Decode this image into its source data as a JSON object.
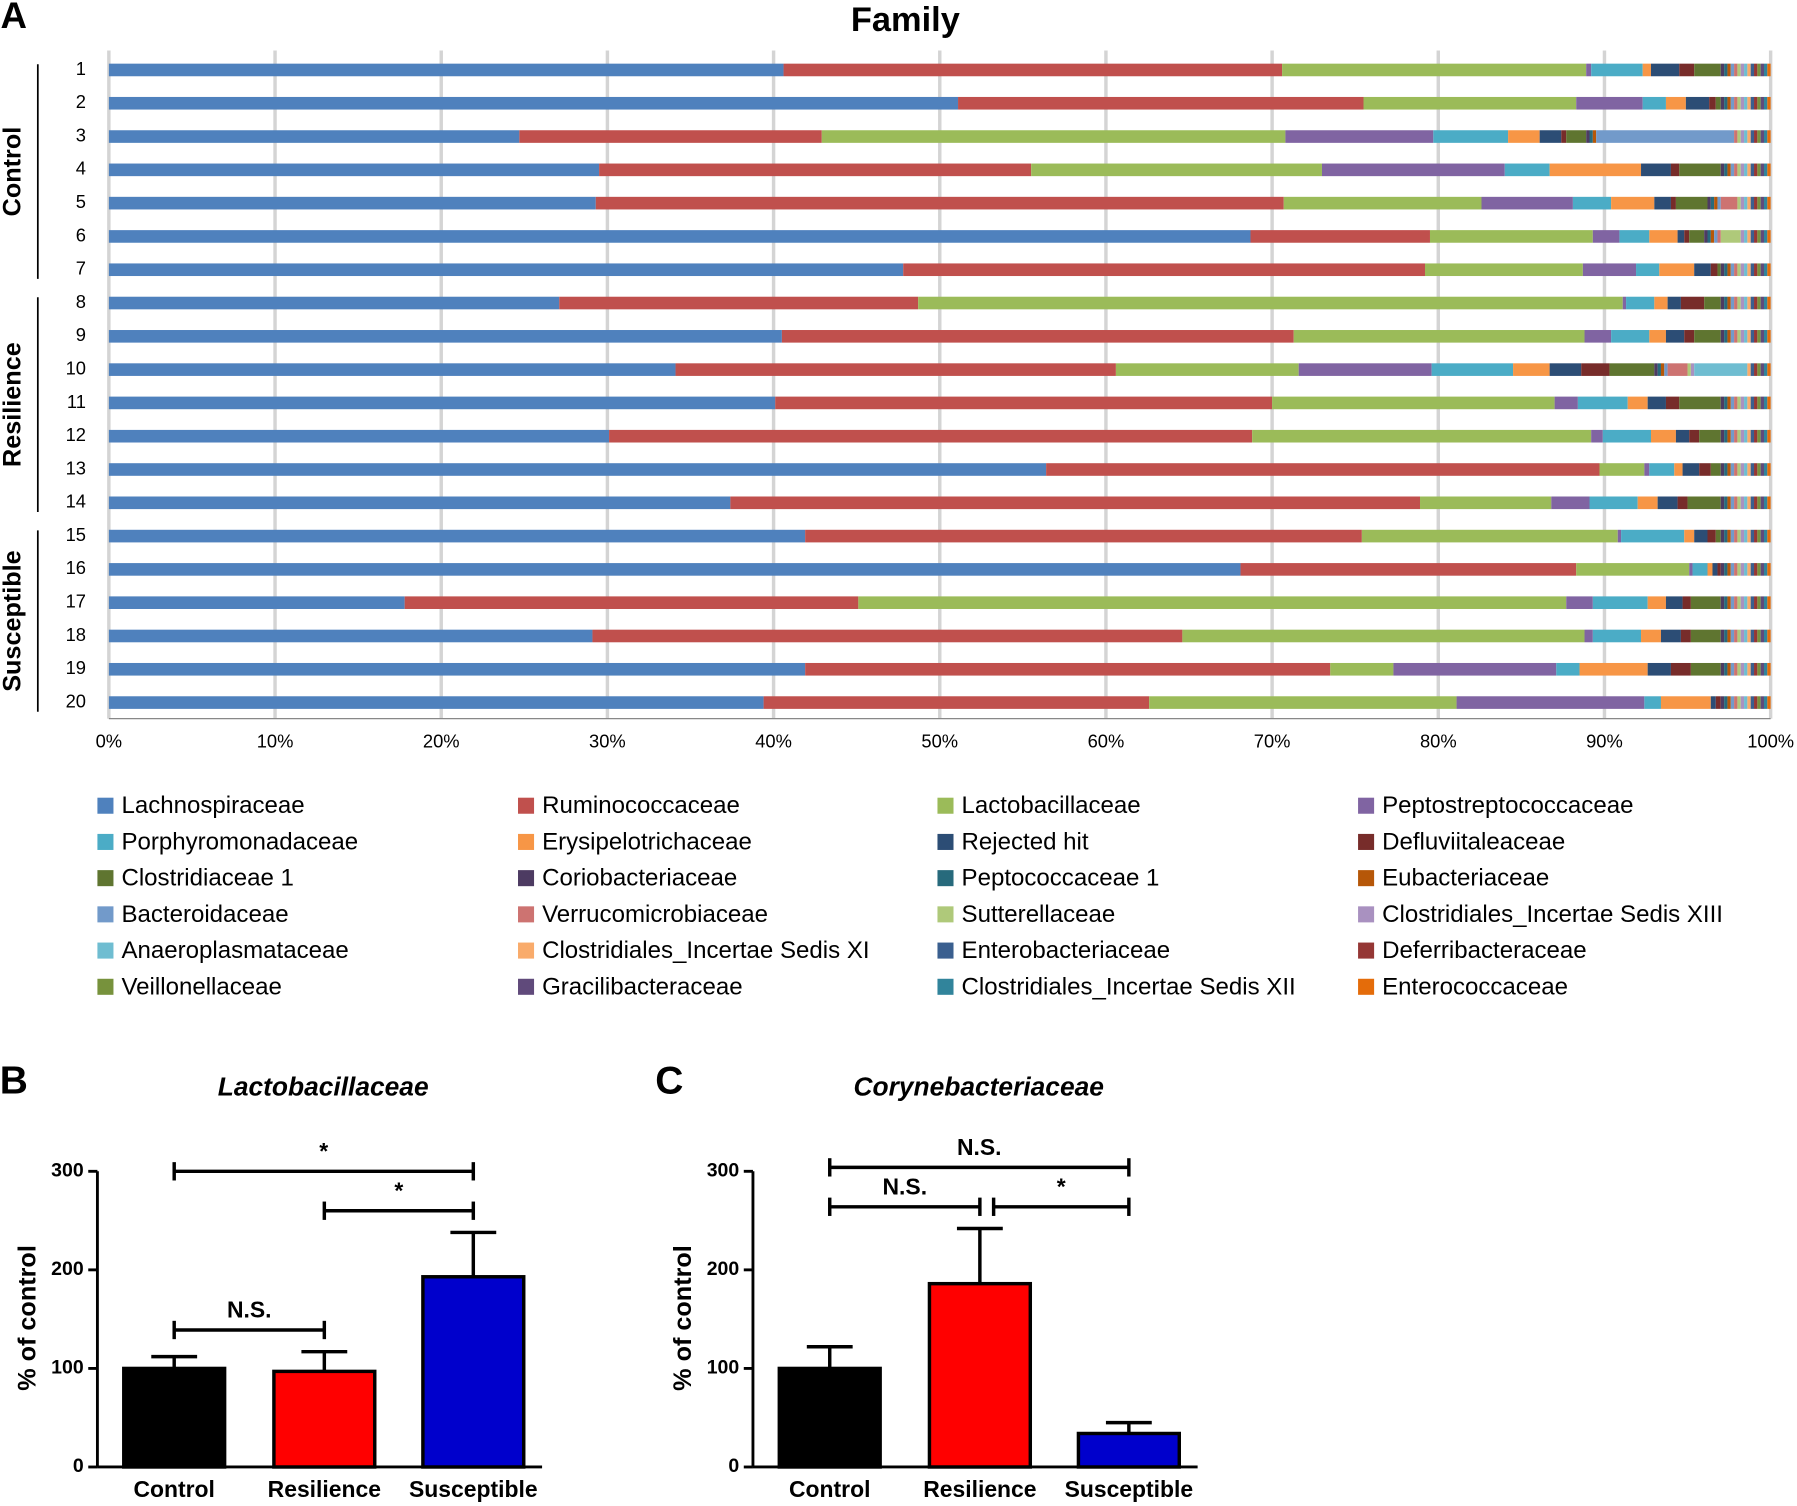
{
  "chart_data": [
    {
      "type": "stackedbar",
      "panel": "A",
      "title": "Family",
      "categories": [
        "1",
        "2",
        "3",
        "4",
        "5",
        "6",
        "7",
        "8",
        "9",
        "10",
        "11",
        "12",
        "13",
        "14",
        "15",
        "16",
        "17",
        "18",
        "19",
        "20"
      ],
      "groups": [
        {
          "name": "Control",
          "members": [
            "1",
            "2",
            "3",
            "4",
            "5",
            "6",
            "7"
          ]
        },
        {
          "name": "Resilience",
          "members": [
            "8",
            "9",
            "10",
            "11",
            "12",
            "13",
            "14"
          ]
        },
        {
          "name": "Susceptible",
          "members": [
            "15",
            "16",
            "17",
            "18",
            "19",
            "20"
          ]
        }
      ],
      "xlim": [
        0,
        100
      ],
      "xticks": [
        {
          "value": 0,
          "label": "0%"
        },
        {
          "value": 10,
          "label": "10%"
        },
        {
          "value": 20,
          "label": "20%"
        },
        {
          "value": 30,
          "label": "30%"
        },
        {
          "value": 40,
          "label": "40%"
        },
        {
          "value": 50,
          "label": "50%"
        },
        {
          "value": 60,
          "label": "60%"
        },
        {
          "value": 70,
          "label": "70%"
        },
        {
          "value": 80,
          "label": "80%"
        },
        {
          "value": 90,
          "label": "90%"
        },
        {
          "value": 100,
          "label": "100%"
        }
      ],
      "grid": true,
      "series": [
        {
          "name": "Lachnospiraceae",
          "color": "#4f81bd",
          "values": [
            40.6,
            51.1,
            24.7,
            29.5,
            29.3,
            68.7,
            47.8,
            27.1,
            40.5,
            34.1,
            40.1,
            30.1,
            56.4,
            37.4,
            41.9,
            68.1,
            17.8,
            29.1,
            41.9,
            39.4
          ]
        },
        {
          "name": "Ruminococcaceae",
          "color": "#c0504d",
          "values": [
            30.0,
            24.4,
            18.2,
            26.0,
            41.4,
            10.8,
            31.4,
            21.6,
            30.8,
            26.5,
            29.9,
            38.7,
            33.3,
            41.5,
            33.5,
            20.2,
            27.3,
            35.5,
            31.6,
            23.2
          ]
        },
        {
          "name": "Lactobacillaceae",
          "color": "#9bbb59",
          "values": [
            18.3,
            12.8,
            27.9,
            17.5,
            11.9,
            9.8,
            9.5,
            42.4,
            17.5,
            11.0,
            17.0,
            20.4,
            2.7,
            7.9,
            15.4,
            6.8,
            42.6,
            24.2,
            3.8,
            18.5
          ]
        },
        {
          "name": "Peptostreptococcaceae",
          "color": "#8064a2",
          "values": [
            0.3,
            4.0,
            8.9,
            11.0,
            5.5,
            1.6,
            3.2,
            0.2,
            1.6,
            8.0,
            1.4,
            0.7,
            0.3,
            2.3,
            0.2,
            0.2,
            1.6,
            0.5,
            9.8,
            11.3
          ]
        },
        {
          "name": "Porphyromonadaceae",
          "color": "#4bacc6",
          "values": [
            3.1,
            1.4,
            4.5,
            2.7,
            2.3,
            1.8,
            1.4,
            1.7,
            2.3,
            4.9,
            3.0,
            2.9,
            1.5,
            2.9,
            3.8,
            0.9,
            3.3,
            2.9,
            1.4,
            1.0
          ]
        },
        {
          "name": "Erysipelotrichaceae",
          "color": "#f79646",
          "values": [
            0.5,
            1.2,
            1.9,
            5.5,
            2.6,
            1.7,
            2.1,
            0.8,
            1.0,
            2.2,
            1.2,
            1.5,
            0.5,
            1.2,
            0.6,
            0.3,
            1.1,
            1.2,
            4.1,
            3.0
          ]
        },
        {
          "name": "Rejected hit",
          "color": "#2c4d75",
          "values": [
            1.7,
            1.4,
            1.3,
            1.8,
            1.0,
            0.4,
            1.0,
            0.8,
            1.1,
            1.9,
            1.1,
            0.8,
            1.0,
            1.2,
            0.8,
            0.3,
            1.0,
            1.2,
            1.4,
            0.3
          ]
        },
        {
          "name": "Defluviitaleaceae",
          "color": "#772c2a",
          "values": [
            0.9,
            0.4,
            0.3,
            0.5,
            0.3,
            0.3,
            0.4,
            1.4,
            0.6,
            1.7,
            0.8,
            0.6,
            0.7,
            0.6,
            0.5,
            0.2,
            0.5,
            0.6,
            1.2,
            0.3
          ]
        },
        {
          "name": "Clostridiaceae 1",
          "color": "#5f7530",
          "values": [
            1.6,
            0.3,
            1.2,
            2.5,
            1.9,
            0.9,
            0.2,
            1.0,
            1.6,
            2.7,
            2.5,
            1.3,
            0.6,
            2.0,
            0.3,
            0,
            1.8,
            1.8,
            1.8,
            0
          ]
        },
        {
          "name": "Coriobacteriaceae",
          "color": "#4d3b62",
          "values": [
            0.2,
            0.2,
            0.2,
            0.2,
            0.2,
            0.2,
            0.2,
            0.2,
            0.2,
            0.2,
            0.2,
            0.2,
            0.2,
            0.2,
            0.2,
            0.2,
            0.2,
            0.2,
            0.2,
            0.2
          ]
        },
        {
          "name": "Peptococcaceae 1",
          "color": "#276a7c",
          "values": [
            0.2,
            0.2,
            0.2,
            0.2,
            0.2,
            0.2,
            0.2,
            0.2,
            0.2,
            0.2,
            0.2,
            0.2,
            0.2,
            0.2,
            0.2,
            0.2,
            0.2,
            0.2,
            0.2,
            0.2
          ]
        },
        {
          "name": "Eubacteriaceae",
          "color": "#b65708",
          "values": [
            0.2,
            0.2,
            0.2,
            0.2,
            0.2,
            0.2,
            0.2,
            0.2,
            0.2,
            0.2,
            0.2,
            0.2,
            0.2,
            0.2,
            0.2,
            0.2,
            0.2,
            0.2,
            0.2,
            0.2
          ]
        },
        {
          "name": "Bacteroidaceae",
          "color": "#729aca",
          "values": [
            0.2,
            0.2,
            8.3,
            0.2,
            0.2,
            0.2,
            0.2,
            0.2,
            0.2,
            0.2,
            0.2,
            0.2,
            0.2,
            0.2,
            0.2,
            0.2,
            0.2,
            0.2,
            0.2,
            0.2
          ]
        },
        {
          "name": "Verrucomicrobiaceae",
          "color": "#cd7371",
          "values": [
            0.2,
            0.2,
            0.2,
            0.2,
            1.0,
            0.2,
            0.2,
            0.2,
            0.2,
            1.2,
            0.2,
            0.2,
            0.2,
            0.2,
            0.2,
            0.2,
            0.2,
            0.2,
            0.2,
            0.2
          ]
        },
        {
          "name": "Sutterellaceae",
          "color": "#afc97a",
          "values": [
            0.2,
            0.2,
            0.2,
            0.2,
            0.2,
            1.2,
            0.2,
            0.2,
            0.2,
            0.2,
            0.2,
            0.2,
            0.2,
            0.2,
            0.2,
            0.2,
            0.2,
            0.2,
            0.2,
            0.2
          ]
        },
        {
          "name": "Clostridiales_Incertae Sedis XIII",
          "color": "#a991c0",
          "values": [
            0.2,
            0.2,
            0.2,
            0.2,
            0.2,
            0.2,
            0.2,
            0.2,
            0.2,
            0.2,
            0.2,
            0.2,
            0.2,
            0.2,
            0.2,
            0.2,
            0.2,
            0.2,
            0.2,
            0.2
          ]
        },
        {
          "name": "Anaeroplasmataceae",
          "color": "#6fbdd1",
          "values": [
            0.2,
            0.2,
            0.2,
            0.2,
            0.2,
            0.2,
            0.2,
            0.2,
            0.2,
            3.2,
            0.2,
            0.2,
            0.2,
            0.2,
            0.2,
            0.2,
            0.2,
            0.2,
            0.2,
            0.2
          ]
        },
        {
          "name": "Clostridiales_Incertae Sedis XI",
          "color": "#f9ab6b",
          "values": [
            0.2,
            0.2,
            0.2,
            0.2,
            0.2,
            0.2,
            0.2,
            0.2,
            0.2,
            0.2,
            0.2,
            0.2,
            0.2,
            0.2,
            0.2,
            0.2,
            0.2,
            0.2,
            0.2,
            0.2
          ]
        },
        {
          "name": "Enterobacteriaceae",
          "color": "#3a5f8f",
          "values": [
            0.2,
            0.2,
            0.2,
            0.2,
            0.2,
            0.2,
            0.2,
            0.2,
            0.2,
            0.2,
            0.2,
            0.2,
            0.2,
            0.2,
            0.2,
            0.2,
            0.2,
            0.2,
            0.2,
            0.2
          ]
        },
        {
          "name": "Deferribacteraceae",
          "color": "#953735",
          "values": [
            0.2,
            0.2,
            0.2,
            0.2,
            0.2,
            0.2,
            0.2,
            0.2,
            0.2,
            0.2,
            0.2,
            0.2,
            0.2,
            0.2,
            0.2,
            0.2,
            0.2,
            0.2,
            0.2,
            0.2
          ]
        },
        {
          "name": "Veillonellaceae",
          "color": "#77923c",
          "values": [
            0.2,
            0.2,
            0.2,
            0.2,
            0.2,
            0.2,
            0.2,
            0.2,
            0.2,
            0.2,
            0.2,
            0.2,
            0.2,
            0.2,
            0.2,
            0.2,
            0.2,
            0.2,
            0.2,
            0.2
          ]
        },
        {
          "name": "Gracilibacteraceae",
          "color": "#604a7b",
          "values": [
            0.2,
            0.2,
            0.2,
            0.2,
            0.2,
            0.2,
            0.2,
            0.2,
            0.2,
            0.2,
            0.2,
            0.2,
            0.2,
            0.2,
            0.2,
            0.2,
            0.2,
            0.2,
            0.2,
            0.2
          ]
        },
        {
          "name": "Clostridiales_Incertae Sedis XII",
          "color": "#31849b",
          "values": [
            0.2,
            0.2,
            0.2,
            0.2,
            0.2,
            0.2,
            0.2,
            0.2,
            0.2,
            0.2,
            0.2,
            0.2,
            0.2,
            0.2,
            0.2,
            0.2,
            0.2,
            0.2,
            0.2,
            0.2
          ]
        },
        {
          "name": "Enterococcaceae",
          "color": "#e46c0a",
          "values": [
            0.2,
            0.2,
            0.2,
            0.2,
            0.2,
            0.2,
            0.2,
            0.2,
            0.2,
            0.2,
            0.2,
            0.2,
            0.2,
            0.2,
            0.2,
            0.2,
            0.2,
            0.2,
            0.2,
            0.2
          ]
        }
      ]
    },
    {
      "type": "bar",
      "panel": "B",
      "title": "Lactobacillaceae",
      "ylabel": "% of control",
      "categories": [
        "Control",
        "Resilience",
        "Susceptible"
      ],
      "values": [
        100,
        97,
        193
      ],
      "errors": [
        12,
        20,
        45
      ],
      "colors": [
        "#000000",
        "#ff0000",
        "#0000cc"
      ],
      "ylim": [
        0,
        300
      ],
      "yticks": [
        0,
        100,
        200,
        300
      ],
      "comparisons": [
        {
          "from": "Control",
          "to": "Resilience",
          "label": "N.S."
        },
        {
          "from": "Resilience",
          "to": "Susceptible",
          "label": "*"
        },
        {
          "from": "Control",
          "to": "Susceptible",
          "label": "*"
        }
      ]
    },
    {
      "type": "bar",
      "panel": "C",
      "title": "Corynebacteriaceae",
      "ylabel": "% of control",
      "categories": [
        "Control",
        "Resilience",
        "Susceptible"
      ],
      "values": [
        100,
        186,
        34
      ],
      "errors": [
        22,
        56,
        11
      ],
      "colors": [
        "#000000",
        "#ff0000",
        "#0000cc"
      ],
      "ylim": [
        0,
        300
      ],
      "yticks": [
        0,
        100,
        200,
        300
      ],
      "comparisons": [
        {
          "from": "Control",
          "to": "Resilience",
          "label": "N.S."
        },
        {
          "from": "Resilience",
          "to": "Susceptible",
          "label": "*"
        },
        {
          "from": "Control",
          "to": "Susceptible",
          "label": "N.S."
        }
      ]
    }
  ]
}
